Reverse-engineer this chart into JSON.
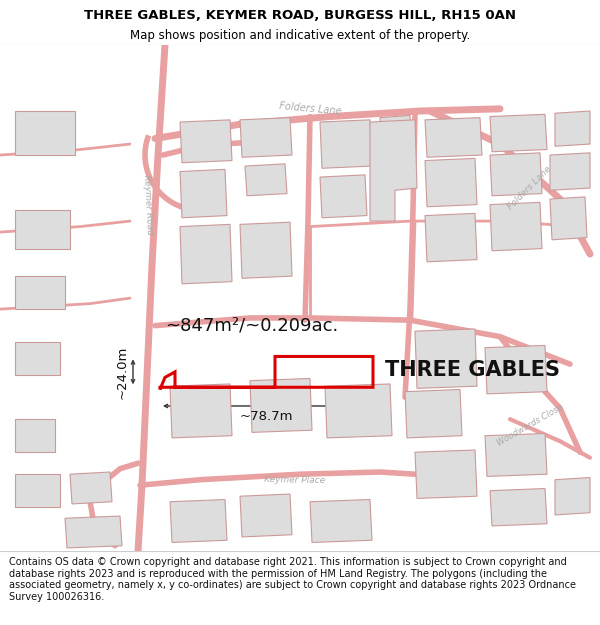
{
  "title_line1": "THREE GABLES, KEYMER ROAD, BURGESS HILL, RH15 0AN",
  "title_line2": "Map shows position and indicative extent of the property.",
  "property_label": "THREE GABLES",
  "area_label": "~847m²/~0.209ac.",
  "width_label": "~78.7m",
  "height_label": "~24.0m",
  "footer_text": "Contains OS data © Crown copyright and database right 2021. This information is subject to Crown copyright and database rights 2023 and is reproduced with the permission of HM Land Registry. The polygons (including the associated geometry, namely x, y co-ordinates) are subject to Crown copyright and database rights 2023 Ordnance Survey 100026316.",
  "road_color": "#e8a0a0",
  "road_label_color": "#aaaaaa",
  "building_face": "#dddddd",
  "building_edge": "#cc9999",
  "map_bg": "#f9f6f6",
  "property_color": "#dd0000",
  "title_fontsize": 9.5,
  "subtitle_fontsize": 8.5,
  "footer_fontsize": 7.0,
  "property_label_fontsize": 15,
  "area_label_fontsize": 13,
  "dim_label_fontsize": 9.5
}
